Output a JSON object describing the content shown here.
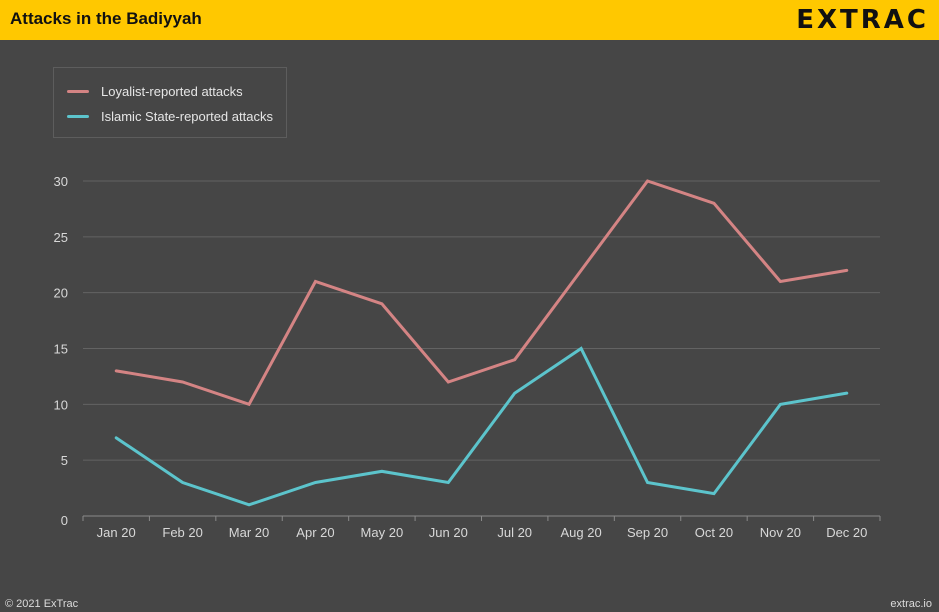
{
  "header": {
    "title": "Attacks in the Badiyyah",
    "logo": "EXTRAC"
  },
  "footer": {
    "copyright": "© 2021 ExTrac",
    "site": "extrac.io"
  },
  "chart_data": {
    "type": "line",
    "title": "Attacks in the Badiyyah",
    "xlabel": "",
    "ylabel": "",
    "categories": [
      "Jan 20",
      "Feb 20",
      "Mar 20",
      "Apr 20",
      "May 20",
      "Jun 20",
      "Jul 20",
      "Aug 20",
      "Sep 20",
      "Oct 20",
      "Nov 20",
      "Dec 20"
    ],
    "ylim": [
      0,
      30
    ],
    "yticks": [
      "0",
      "5",
      "10",
      "15",
      "20",
      "25",
      "30"
    ],
    "grid": true,
    "legend_position": "top-left",
    "series": [
      {
        "name": "Loyalist-reported attacks",
        "color": "#d48484",
        "values": [
          13,
          12,
          10,
          21,
          19,
          12,
          14,
          22,
          30,
          28,
          21,
          22
        ]
      },
      {
        "name": "Islamic State-reported attacks",
        "color": "#5cc4cc",
        "values": [
          7,
          3,
          1,
          3,
          4,
          3,
          11,
          15,
          3,
          2,
          10,
          11
        ]
      }
    ]
  }
}
